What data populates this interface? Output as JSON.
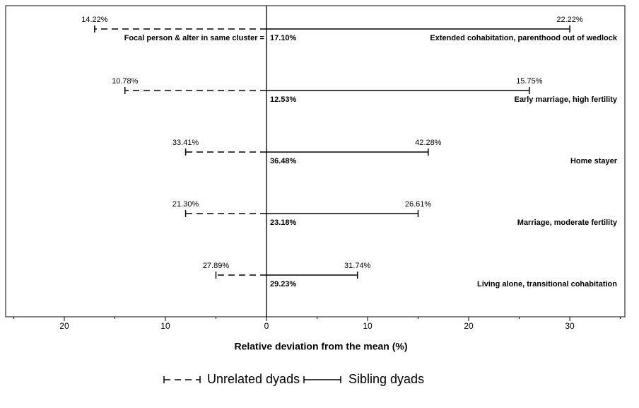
{
  "chart_data": {
    "type": "deviation-range",
    "xlabel": "Relative deviation from the mean (%)",
    "annotation": "Focal person & alter in same cluster =",
    "categories": [
      "Extended cohabitation, parenthood out of wedlock",
      "Early marriage, high fertility",
      "Home stayer",
      "Marriage, moderate fertility",
      "Living alone, transitional cohabitation"
    ],
    "cluster_labels": [
      "17.10%",
      "12.53%",
      "36.48%",
      "23.18%",
      "29.23%"
    ],
    "series": [
      {
        "name": "Unrelated dyads",
        "style": "dashed",
        "color": "#000000",
        "values": [
          -17,
          -14,
          -8,
          -8,
          -5
        ],
        "point_labels": [
          "14.22%",
          "10.78%",
          "33.41%",
          "21.30%",
          "27.89%"
        ]
      },
      {
        "name": "Sibling dyads",
        "style": "solid",
        "color": "#000000",
        "values": [
          30,
          26,
          16,
          15,
          9
        ],
        "point_labels": [
          "22.22%",
          "15.75%",
          "42.28%",
          "26.61%",
          "31.74%"
        ]
      }
    ],
    "xlim": [
      -25.8,
      35.45
    ],
    "xticks": [
      {
        "value": -20,
        "label": "20"
      },
      {
        "value": -10,
        "label": "10"
      },
      0,
      10,
      20,
      30
    ],
    "xminor": [
      -25,
      -15,
      -5,
      5,
      15,
      25,
      35
    ]
  }
}
